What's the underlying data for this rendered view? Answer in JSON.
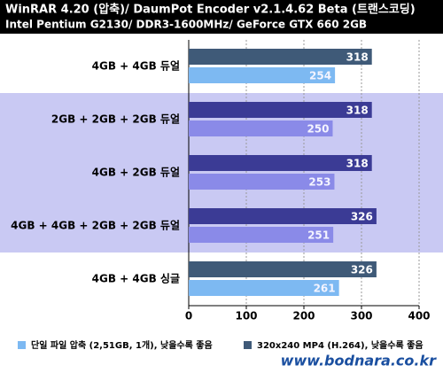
{
  "chart_data": {
    "type": "bar",
    "orientation": "horizontal",
    "title": "WinRAR 4.20 (압축)/ DaumPot Encoder v2.1.4.62 Beta (트랜스코딩)",
    "subtitle": "Intel Pentium G2130/ DDR3-1600MHz/ GeForce GTX 660 2GB",
    "categories": [
      "4GB + 4GB 듀얼",
      "2GB + 2GB + 2GB 듀얼",
      "4GB + 2GB 듀얼",
      "4GB + 4GB + 2GB + 2GB 듀얼",
      "4GB + 4GB 싱글"
    ],
    "series": [
      {
        "name": "단일 파일 압축 (2,51GB, 1개), 낮을수록 좋음",
        "color": "#7db9f2",
        "values": [
          254,
          250,
          253,
          251,
          261
        ]
      },
      {
        "name": "320x240 MP4 (H.264), 낮을수록 좋음",
        "color": "#3f5a78",
        "values": [
          318,
          318,
          318,
          326,
          326
        ]
      }
    ],
    "highlight": {
      "categories": [
        1,
        2,
        3
      ],
      "background": "#c9c9f3",
      "colors": [
        "#8a8ae8",
        "#3b3b95"
      ]
    },
    "xlim": [
      0,
      400
    ],
    "xticks": [
      0,
      100,
      200,
      300,
      400
    ],
    "grid": true,
    "watermark": "www.bodnara.co.kr"
  }
}
